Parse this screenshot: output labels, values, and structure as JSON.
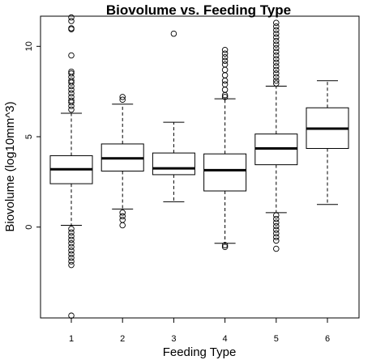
{
  "chart_data": {
    "type": "box",
    "title": "Biovolume vs. Feeding Type",
    "xlabel": "Feeding Type",
    "ylabel": "Biovolume (log10mm^3)",
    "categories": [
      "1",
      "2",
      "3",
      "4",
      "5",
      "6"
    ],
    "yticks": [
      0,
      5,
      10
    ],
    "ytick_labels": [
      "0",
      "5",
      "10"
    ],
    "ylim": [
      -4.9,
      11.8
    ],
    "grid": false,
    "legend": "none",
    "boxes": [
      {
        "category": "1",
        "lower_whisker": 0.1,
        "q1": 2.4,
        "median": 3.2,
        "q3": 3.95,
        "upper_whisker": 6.3,
        "outliers": [
          11.6,
          11.4,
          11.0,
          10.95,
          9.5,
          8.6,
          8.5,
          8.3,
          8.1,
          8.0,
          7.8,
          7.6,
          7.4,
          7.2,
          7.0,
          6.9,
          6.7,
          6.5,
          -0.1,
          -0.3,
          -0.5,
          -0.7,
          -0.9,
          -1.1,
          -1.3,
          -1.5,
          -1.7,
          -1.9,
          -2.1,
          -4.9
        ]
      },
      {
        "category": "2",
        "lower_whisker": 1.0,
        "q1": 3.1,
        "median": 3.8,
        "q3": 4.6,
        "upper_whisker": 6.8,
        "outliers": [
          7.2,
          7.05,
          0.8,
          0.6,
          0.4,
          0.1
        ]
      },
      {
        "category": "3",
        "lower_whisker": 1.4,
        "q1": 2.9,
        "median": 3.25,
        "q3": 4.1,
        "upper_whisker": 5.8,
        "outliers": [
          10.7
        ]
      },
      {
        "category": "4",
        "lower_whisker": -0.9,
        "q1": 2.0,
        "median": 3.15,
        "q3": 4.05,
        "upper_whisker": 7.1,
        "outliers": [
          9.8,
          9.6,
          9.4,
          9.2,
          9.0,
          8.7,
          8.4,
          8.1,
          7.9,
          7.6,
          7.3,
          7.2,
          -1.0,
          -1.1
        ]
      },
      {
        "category": "5",
        "lower_whisker": 0.8,
        "q1": 3.45,
        "median": 4.35,
        "q3": 5.15,
        "upper_whisker": 7.8,
        "outliers": [
          11.3,
          11.1,
          10.9,
          10.7,
          10.5,
          10.3,
          10.1,
          9.9,
          9.7,
          9.5,
          9.3,
          9.1,
          8.9,
          8.7,
          8.5,
          8.3,
          8.1,
          7.95,
          0.65,
          0.45,
          0.25,
          0.05,
          -0.15,
          -0.35,
          -0.55,
          -0.75,
          -1.2
        ]
      },
      {
        "category": "6",
        "lower_whisker": 1.25,
        "q1": 4.35,
        "median": 5.45,
        "q3": 6.6,
        "upper_whisker": 8.1,
        "outliers": []
      }
    ]
  }
}
